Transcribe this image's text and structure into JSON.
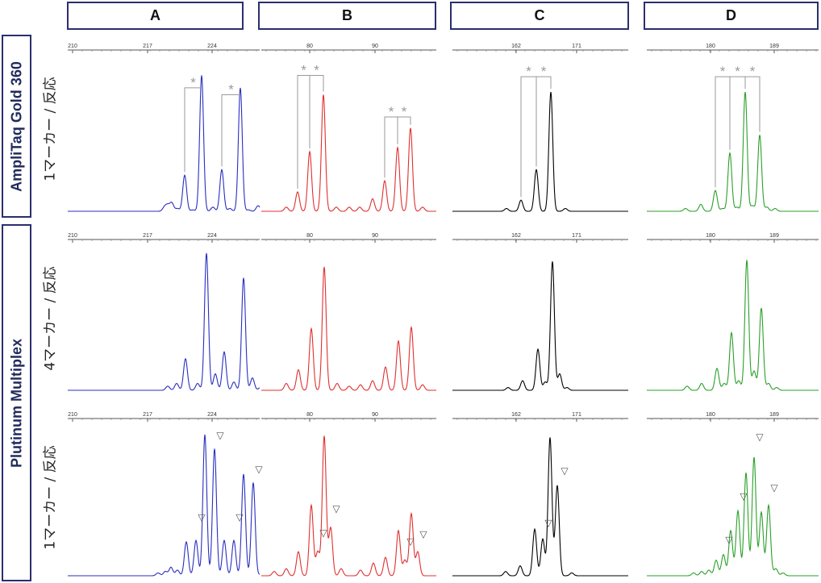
{
  "columns": [
    {
      "key": "A",
      "label": "A",
      "color": "#2a2fbf",
      "ticks": [
        {
          "label": "210",
          "value": 210
        },
        {
          "label": "217",
          "value": 217
        },
        {
          "label": "224",
          "value": 224
        }
      ],
      "rows": [
        {
          "peaks": [
            {
              "x": 204,
              "h": 0.03
            },
            {
              "x": 208,
              "h": 0.04
            },
            {
              "x": 213,
              "h": 0.06
            },
            {
              "x": 220,
              "h": 0.02
            },
            {
              "x": 229,
              "h": 0.26
            },
            {
              "x": 239,
              "h": 0.01
            },
            {
              "x": 250,
              "h": 0.98
            },
            {
              "x": 264,
              "h": 0.03
            },
            {
              "x": 275,
              "h": 0.3
            },
            {
              "x": 285,
              "h": 0.02
            },
            {
              "x": 298,
              "h": 0.89
            },
            {
              "x": 308,
              "h": 0.01
            },
            {
              "x": 320,
              "h": 0.04
            }
          ],
          "brackets": [
            {
              "x1": 229,
              "x2": 250,
              "top": 0.89
            },
            {
              "x1": 275,
              "x2": 298,
              "top": 0.84
            }
          ],
          "triangles": []
        },
        {
          "peaks": [
            {
              "x": 208,
              "h": 0.03
            },
            {
              "x": 219,
              "h": 0.05
            },
            {
              "x": 230,
              "h": 0.23
            },
            {
              "x": 245,
              "h": 0.05
            },
            {
              "x": 256,
              "h": 1.0
            },
            {
              "x": 267,
              "h": 0.12
            },
            {
              "x": 278,
              "h": 0.28
            },
            {
              "x": 290,
              "h": 0.06
            },
            {
              "x": 302,
              "h": 0.82
            },
            {
              "x": 313,
              "h": 0.09
            },
            {
              "x": 323,
              "h": 0.02
            }
          ],
          "brackets": [],
          "triangles": []
        },
        {
          "peaks": [
            {
              "x": 196,
              "h": 0.02
            },
            {
              "x": 205,
              "h": 0.03
            },
            {
              "x": 212,
              "h": 0.06
            },
            {
              "x": 220,
              "h": 0.04
            },
            {
              "x": 231,
              "h": 0.24
            },
            {
              "x": 243,
              "h": 0.25
            },
            {
              "x": 254,
              "h": 1.0
            },
            {
              "x": 266,
              "h": 0.9
            },
            {
              "x": 278,
              "h": 0.25
            },
            {
              "x": 290,
              "h": 0.25
            },
            {
              "x": 302,
              "h": 0.72
            },
            {
              "x": 314,
              "h": 0.66
            },
            {
              "x": 325,
              "h": 0.02
            }
          ],
          "brackets": [],
          "triangles": [
            {
              "x": 266,
              "h": 0.96
            },
            {
              "x": 243,
              "h": 0.38
            },
            {
              "x": 290,
              "h": 0.38
            },
            {
              "x": 314,
              "h": 0.72
            }
          ]
        }
      ]
    },
    {
      "key": "B",
      "label": "B",
      "color": "#e03030",
      "ticks": [
        {
          "label": "80",
          "value": 80
        },
        {
          "label": "90",
          "value": 90
        }
      ],
      "rows": [
        {
          "peaks": [
            {
              "x": 355,
              "h": 0.03
            },
            {
              "x": 369,
              "h": 0.14
            },
            {
              "x": 384,
              "h": 0.43
            },
            {
              "x": 401,
              "h": 0.84
            },
            {
              "x": 417,
              "h": 0.03
            },
            {
              "x": 433,
              "h": 0.03
            },
            {
              "x": 446,
              "h": 0.03
            },
            {
              "x": 462,
              "h": 0.09
            },
            {
              "x": 477,
              "h": 0.22
            },
            {
              "x": 493,
              "h": 0.46
            },
            {
              "x": 509,
              "h": 0.6
            },
            {
              "x": 524,
              "h": 0.03
            }
          ],
          "brackets": [
            {
              "x1": 369,
              "x2": 384,
              "top": 0.98
            },
            {
              "x1": 384,
              "x2": 401,
              "top": 0.98
            },
            {
              "x1": 477,
              "x2": 493,
              "top": 0.68
            },
            {
              "x1": 493,
              "x2": 509,
              "top": 0.68
            }
          ],
          "triangles": []
        },
        {
          "peaks": [
            {
              "x": 355,
              "h": 0.05
            },
            {
              "x": 370,
              "h": 0.15
            },
            {
              "x": 386,
              "h": 0.45
            },
            {
              "x": 402,
              "h": 0.9
            },
            {
              "x": 418,
              "h": 0.05
            },
            {
              "x": 433,
              "h": 0.03
            },
            {
              "x": 447,
              "h": 0.04
            },
            {
              "x": 462,
              "h": 0.07
            },
            {
              "x": 478,
              "h": 0.17
            },
            {
              "x": 494,
              "h": 0.36
            },
            {
              "x": 510,
              "h": 0.46
            },
            {
              "x": 524,
              "h": 0.04
            }
          ],
          "brackets": [],
          "triangles": []
        },
        {
          "peaks": [
            {
              "x": 340,
              "h": 0.03
            },
            {
              "x": 355,
              "h": 0.05
            },
            {
              "x": 370,
              "h": 0.17
            },
            {
              "x": 386,
              "h": 0.5
            },
            {
              "x": 394,
              "h": 0.17
            },
            {
              "x": 402,
              "h": 0.99
            },
            {
              "x": 410,
              "h": 0.34
            },
            {
              "x": 423,
              "h": 0.05
            },
            {
              "x": 447,
              "h": 0.04
            },
            {
              "x": 463,
              "h": 0.09
            },
            {
              "x": 478,
              "h": 0.13
            },
            {
              "x": 494,
              "h": 0.32
            },
            {
              "x": 502,
              "h": 0.11
            },
            {
              "x": 510,
              "h": 0.44
            },
            {
              "x": 518,
              "h": 0.17
            }
          ],
          "brackets": [],
          "triangles": [
            {
              "x": 394,
              "h": 0.27
            },
            {
              "x": 410,
              "h": 0.44
            },
            {
              "x": 502,
              "h": 0.21
            },
            {
              "x": 518,
              "h": 0.26
            }
          ]
        }
      ]
    },
    {
      "key": "C",
      "label": "C",
      "color": "#000000",
      "ticks": [
        {
          "label": "162",
          "value": 162
        },
        {
          "label": "171",
          "value": 171
        }
      ],
      "rows": [
        {
          "peaks": [
            {
              "x": 628,
              "h": 0.02
            },
            {
              "x": 646,
              "h": 0.08
            },
            {
              "x": 665,
              "h": 0.3
            },
            {
              "x": 683,
              "h": 0.86
            },
            {
              "x": 701,
              "h": 0.02
            }
          ],
          "brackets": [
            {
              "x1": 646,
              "x2": 665,
              "top": 0.97
            },
            {
              "x1": 665,
              "x2": 683,
              "top": 0.97
            }
          ],
          "triangles": []
        },
        {
          "peaks": [
            {
              "x": 630,
              "h": 0.02
            },
            {
              "x": 648,
              "h": 0.07
            },
            {
              "x": 667,
              "h": 0.3
            },
            {
              "x": 676,
              "h": 0.06
            },
            {
              "x": 685,
              "h": 0.94
            },
            {
              "x": 694,
              "h": 0.12
            },
            {
              "x": 703,
              "h": 0.02
            }
          ],
          "brackets": [],
          "triangles": []
        },
        {
          "peaks": [
            {
              "x": 627,
              "h": 0.03
            },
            {
              "x": 645,
              "h": 0.07
            },
            {
              "x": 663,
              "h": 0.33
            },
            {
              "x": 673,
              "h": 0.26
            },
            {
              "x": 682,
              "h": 0.98
            },
            {
              "x": 691,
              "h": 0.64
            },
            {
              "x": 709,
              "h": 0.02
            }
          ],
          "brackets": [],
          "triangles": [
            {
              "x": 673,
              "h": 0.34
            },
            {
              "x": 693,
              "h": 0.71
            }
          ]
        }
      ]
    },
    {
      "key": "D",
      "label": "D",
      "color": "#2aa02a",
      "ticks": [
        {
          "label": "180",
          "value": 180
        },
        {
          "label": "189",
          "value": 189
        }
      ],
      "rows": [
        {
          "peaks": [
            {
              "x": 850,
              "h": 0.02
            },
            {
              "x": 869,
              "h": 0.05
            },
            {
              "x": 887,
              "h": 0.15
            },
            {
              "x": 896,
              "h": 0.02
            },
            {
              "x": 905,
              "h": 0.42
            },
            {
              "x": 914,
              "h": 0.03
            },
            {
              "x": 924,
              "h": 0.86
            },
            {
              "x": 933,
              "h": 0.04
            },
            {
              "x": 942,
              "h": 0.55
            },
            {
              "x": 951,
              "h": 0.03
            },
            {
              "x": 961,
              "h": 0.02
            }
          ],
          "brackets": [
            {
              "x1": 887,
              "x2": 905,
              "top": 0.97
            },
            {
              "x1": 905,
              "x2": 924,
              "top": 0.97
            },
            {
              "x1": 924,
              "x2": 942,
              "top": 0.97
            }
          ],
          "triangles": []
        },
        {
          "peaks": [
            {
              "x": 852,
              "h": 0.03
            },
            {
              "x": 870,
              "h": 0.05
            },
            {
              "x": 889,
              "h": 0.16
            },
            {
              "x": 898,
              "h": 0.05
            },
            {
              "x": 907,
              "h": 0.42
            },
            {
              "x": 916,
              "h": 0.07
            },
            {
              "x": 926,
              "h": 0.95
            },
            {
              "x": 935,
              "h": 0.14
            },
            {
              "x": 944,
              "h": 0.6
            },
            {
              "x": 953,
              "h": 0.05
            },
            {
              "x": 963,
              "h": 0.02
            }
          ],
          "brackets": [],
          "triangles": []
        },
        {
          "peaks": [
            {
              "x": 860,
              "h": 0.02
            },
            {
              "x": 870,
              "h": 0.03
            },
            {
              "x": 879,
              "h": 0.04
            },
            {
              "x": 888,
              "h": 0.11
            },
            {
              "x": 897,
              "h": 0.15
            },
            {
              "x": 906,
              "h": 0.32
            },
            {
              "x": 915,
              "h": 0.46
            },
            {
              "x": 925,
              "h": 0.73
            },
            {
              "x": 935,
              "h": 0.84
            },
            {
              "x": 944,
              "h": 0.45
            },
            {
              "x": 953,
              "h": 0.5
            },
            {
              "x": 962,
              "h": 0.05
            },
            {
              "x": 971,
              "h": 0.02
            }
          ],
          "brackets": [],
          "triangles": [
            {
              "x": 935,
              "h": 0.95
            },
            {
              "x": 915,
              "h": 0.53
            },
            {
              "x": 897,
              "h": 0.22
            },
            {
              "x": 953,
              "h": 0.59
            }
          ]
        }
      ]
    }
  ],
  "groups": [
    {
      "label": "AmpliTaq Gold 360"
    },
    {
      "label": "Plutinum Multiplex"
    }
  ],
  "row_labels": [
    "1マーカー / 反応",
    "4マーカー / 反応",
    "1マーカー / 反応"
  ],
  "marker_symbol": "*",
  "triangle_symbol": "▽",
  "colors": {
    "frame": "#2b2e6e",
    "annotation": "#9a9a9a"
  }
}
